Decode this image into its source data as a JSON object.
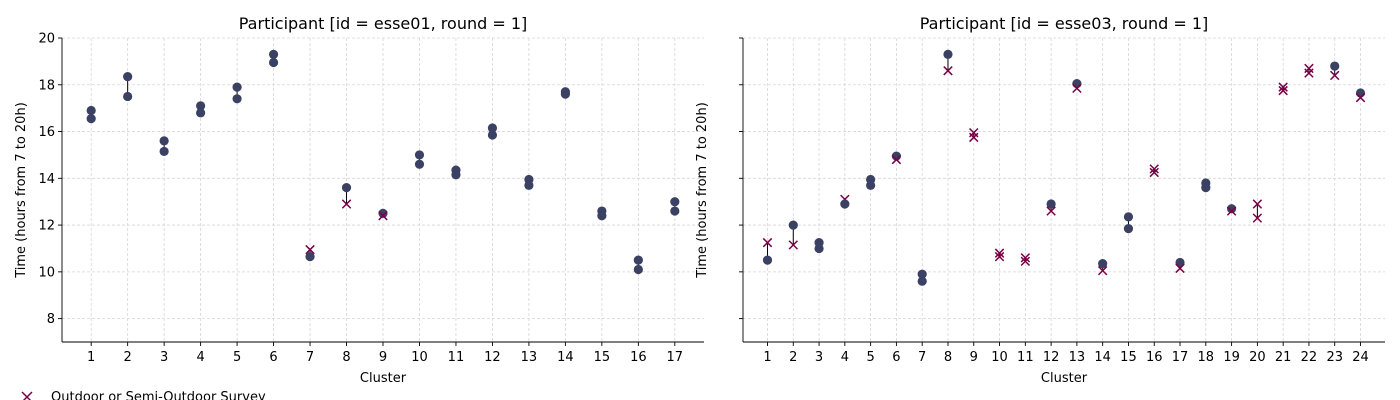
{
  "legend": {
    "placement": "bottom-left",
    "entries": [
      {
        "label": "Outdoor or Semi-Outdoor Survey",
        "marker": "x"
      }
    ]
  },
  "colors": {
    "dot": "#3b4163",
    "cross": "#7a0046",
    "grid": "#d6d6d6",
    "axis": "#000000"
  },
  "chart_data": [
    {
      "type": "scatter",
      "title": "Participant [id = esse01, round = 1]",
      "xlabel": "Cluster",
      "ylabel": "Time (hours from 7 to 20h)",
      "xticks": [
        1,
        2,
        3,
        4,
        5,
        6,
        7,
        8,
        9,
        10,
        11,
        12,
        13,
        14,
        15,
        16,
        17
      ],
      "yticks": [
        8,
        10,
        12,
        14,
        16,
        18,
        20
      ],
      "ylim": [
        7,
        20
      ],
      "xlim": [
        0.2,
        17.8
      ],
      "grid": true,
      "clusters": [
        {
          "x": 1,
          "points": [
            {
              "y": 16.9,
              "m": "o"
            },
            {
              "y": 16.55,
              "m": "o"
            }
          ]
        },
        {
          "x": 2,
          "points": [
            {
              "y": 18.35,
              "m": "o"
            },
            {
              "y": 17.5,
              "m": "o"
            }
          ]
        },
        {
          "x": 3,
          "points": [
            {
              "y": 15.6,
              "m": "o"
            },
            {
              "y": 15.15,
              "m": "o"
            }
          ]
        },
        {
          "x": 4,
          "points": [
            {
              "y": 17.1,
              "m": "o"
            },
            {
              "y": 16.8,
              "m": "o"
            }
          ]
        },
        {
          "x": 5,
          "points": [
            {
              "y": 17.9,
              "m": "o"
            },
            {
              "y": 17.4,
              "m": "o"
            }
          ]
        },
        {
          "x": 6,
          "points": [
            {
              "y": 19.3,
              "m": "o"
            },
            {
              "y": 18.95,
              "m": "o"
            }
          ]
        },
        {
          "x": 7,
          "points": [
            {
              "y": 10.95,
              "m": "x"
            },
            {
              "y": 10.65,
              "m": "o"
            }
          ]
        },
        {
          "x": 8,
          "points": [
            {
              "y": 13.6,
              "m": "o"
            },
            {
              "y": 12.9,
              "m": "x"
            }
          ]
        },
        {
          "x": 9,
          "points": [
            {
              "y": 12.5,
              "m": "o"
            },
            {
              "y": 12.4,
              "m": "x"
            }
          ]
        },
        {
          "x": 10,
          "points": [
            {
              "y": 15.0,
              "m": "o"
            },
            {
              "y": 14.6,
              "m": "o"
            }
          ]
        },
        {
          "x": 11,
          "points": [
            {
              "y": 14.35,
              "m": "o"
            },
            {
              "y": 14.15,
              "m": "o"
            }
          ]
        },
        {
          "x": 12,
          "points": [
            {
              "y": 16.15,
              "m": "o"
            },
            {
              "y": 15.85,
              "m": "o"
            }
          ]
        },
        {
          "x": 13,
          "points": [
            {
              "y": 13.95,
              "m": "o"
            },
            {
              "y": 13.7,
              "m": "o"
            }
          ]
        },
        {
          "x": 14,
          "points": [
            {
              "y": 17.7,
              "m": "o"
            },
            {
              "y": 17.6,
              "m": "o"
            }
          ]
        },
        {
          "x": 15,
          "points": [
            {
              "y": 12.6,
              "m": "o"
            },
            {
              "y": 12.4,
              "m": "o"
            }
          ]
        },
        {
          "x": 16,
          "points": [
            {
              "y": 10.5,
              "m": "o"
            },
            {
              "y": 10.1,
              "m": "o"
            }
          ]
        },
        {
          "x": 17,
          "points": [
            {
              "y": 13.0,
              "m": "o"
            },
            {
              "y": 12.6,
              "m": "o"
            }
          ]
        }
      ]
    },
    {
      "type": "scatter",
      "title": "Participant [id = esse03, round = 1]",
      "xlabel": "Cluster",
      "ylabel": "Time (hours from 7 to 20h)",
      "xticks": [
        1,
        2,
        3,
        4,
        5,
        6,
        7,
        8,
        9,
        10,
        11,
        12,
        13,
        14,
        15,
        16,
        17,
        18,
        19,
        20,
        21,
        22,
        23,
        24
      ],
      "yticks": [
        8,
        10,
        12,
        14,
        16,
        18,
        20
      ],
      "show_ytick_labels": false,
      "ylim": [
        7,
        20
      ],
      "xlim": [
        0.05,
        24.95
      ],
      "grid": true,
      "clusters": [
        {
          "x": 1,
          "points": [
            {
              "y": 11.25,
              "m": "x"
            },
            {
              "y": 10.5,
              "m": "o"
            }
          ]
        },
        {
          "x": 2,
          "points": [
            {
              "y": 12.0,
              "m": "o"
            },
            {
              "y": 11.15,
              "m": "x"
            }
          ]
        },
        {
          "x": 3,
          "points": [
            {
              "y": 11.25,
              "m": "o"
            },
            {
              "y": 11.0,
              "m": "o"
            }
          ]
        },
        {
          "x": 4,
          "points": [
            {
              "y": 13.1,
              "m": "x"
            },
            {
              "y": 12.9,
              "m": "o"
            }
          ]
        },
        {
          "x": 5,
          "points": [
            {
              "y": 13.95,
              "m": "o"
            },
            {
              "y": 13.7,
              "m": "o"
            }
          ]
        },
        {
          "x": 6,
          "points": [
            {
              "y": 14.95,
              "m": "o"
            },
            {
              "y": 14.8,
              "m": "x"
            }
          ]
        },
        {
          "x": 7,
          "points": [
            {
              "y": 9.9,
              "m": "o"
            },
            {
              "y": 9.6,
              "m": "o"
            }
          ]
        },
        {
          "x": 8,
          "points": [
            {
              "y": 19.3,
              "m": "o"
            },
            {
              "y": 18.6,
              "m": "x"
            }
          ]
        },
        {
          "x": 9,
          "points": [
            {
              "y": 15.95,
              "m": "x"
            },
            {
              "y": 15.75,
              "m": "x"
            }
          ]
        },
        {
          "x": 10,
          "points": [
            {
              "y": 10.8,
              "m": "x"
            },
            {
              "y": 10.65,
              "m": "x"
            }
          ]
        },
        {
          "x": 11,
          "points": [
            {
              "y": 10.6,
              "m": "x"
            },
            {
              "y": 10.45,
              "m": "x"
            }
          ]
        },
        {
          "x": 12,
          "points": [
            {
              "y": 12.9,
              "m": "o"
            },
            {
              "y": 12.6,
              "m": "x"
            }
          ]
        },
        {
          "x": 13,
          "points": [
            {
              "y": 18.05,
              "m": "o"
            },
            {
              "y": 17.85,
              "m": "x"
            }
          ]
        },
        {
          "x": 14,
          "points": [
            {
              "y": 10.35,
              "m": "o"
            },
            {
              "y": 10.05,
              "m": "x"
            }
          ]
        },
        {
          "x": 15,
          "points": [
            {
              "y": 12.35,
              "m": "o"
            },
            {
              "y": 11.85,
              "m": "o"
            }
          ]
        },
        {
          "x": 16,
          "points": [
            {
              "y": 14.4,
              "m": "x"
            },
            {
              "y": 14.25,
              "m": "x"
            }
          ]
        },
        {
          "x": 17,
          "points": [
            {
              "y": 10.4,
              "m": "o"
            },
            {
              "y": 10.15,
              "m": "x"
            }
          ]
        },
        {
          "x": 18,
          "points": [
            {
              "y": 13.8,
              "m": "o"
            },
            {
              "y": 13.6,
              "m": "o"
            }
          ]
        },
        {
          "x": 19,
          "points": [
            {
              "y": 12.7,
              "m": "o"
            },
            {
              "y": 12.6,
              "m": "x"
            }
          ]
        },
        {
          "x": 20,
          "points": [
            {
              "y": 12.9,
              "m": "x"
            },
            {
              "y": 12.3,
              "m": "x"
            }
          ]
        },
        {
          "x": 21,
          "points": [
            {
              "y": 17.9,
              "m": "x"
            },
            {
              "y": 17.75,
              "m": "x"
            }
          ]
        },
        {
          "x": 22,
          "points": [
            {
              "y": 18.7,
              "m": "x"
            },
            {
              "y": 18.5,
              "m": "x"
            }
          ]
        },
        {
          "x": 23,
          "points": [
            {
              "y": 18.8,
              "m": "o"
            },
            {
              "y": 18.4,
              "m": "x"
            }
          ]
        },
        {
          "x": 24,
          "points": [
            {
              "y": 17.65,
              "m": "o"
            },
            {
              "y": 17.45,
              "m": "x"
            }
          ]
        }
      ]
    }
  ]
}
